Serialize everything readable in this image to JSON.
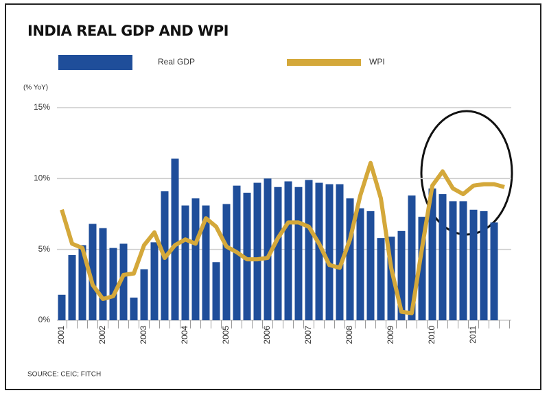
{
  "chart_data": {
    "type": "bar_line",
    "title": "INDIA REAL GDP AND WPI",
    "y_label": "(% YoY)",
    "source": "SOURCE: CEIC; FITCH",
    "categories": [
      "2001",
      null,
      null,
      null,
      "2002",
      null,
      null,
      null,
      "2003",
      null,
      null,
      null,
      "2004",
      null,
      null,
      null,
      "2005",
      null,
      null,
      null,
      "2006",
      null,
      null,
      null,
      "2007",
      null,
      null,
      null,
      "2008",
      null,
      null,
      null,
      "2009",
      null,
      null,
      null,
      "2010",
      null,
      null,
      null,
      "2011",
      null,
      null,
      null
    ],
    "series": [
      {
        "name": "Real GDP",
        "type": "bar",
        "color": "#1f4e9a",
        "values": [
          1.8,
          4.6,
          5.3,
          6.8,
          6.5,
          5.1,
          5.4,
          1.6,
          3.6,
          5.5,
          9.1,
          11.4,
          8.1,
          8.6,
          8.1,
          4.1,
          8.2,
          9.5,
          9.0,
          9.7,
          10.0,
          9.4,
          9.8,
          9.4,
          9.9,
          9.7,
          9.6,
          9.6,
          8.6,
          7.9,
          7.7,
          5.8,
          5.9,
          6.3,
          8.8,
          7.3,
          9.3,
          8.9,
          8.4,
          8.4,
          7.8,
          7.7,
          6.9,
          null
        ]
      },
      {
        "name": "WPI",
        "type": "line",
        "color": "#d4a83a",
        "values": [
          7.8,
          5.4,
          5.1,
          2.5,
          1.5,
          1.7,
          3.2,
          3.3,
          5.3,
          6.2,
          4.4,
          5.3,
          5.7,
          5.4,
          7.2,
          6.6,
          5.2,
          4.8,
          4.3,
          4.3,
          4.4,
          5.8,
          6.9,
          6.9,
          6.6,
          5.4,
          3.9,
          3.7,
          5.7,
          8.8,
          11.1,
          8.6,
          3.7,
          0.6,
          0.5,
          5.1,
          9.5,
          10.5,
          9.3,
          8.9,
          9.5,
          9.6,
          9.6,
          9.4
        ]
      }
    ],
    "ylim": [
      0,
      15
    ],
    "yticks": [
      {
        "value": 0,
        "label": "0%"
      },
      {
        "value": 5,
        "label": "5%"
      },
      {
        "value": 10,
        "label": "10%"
      },
      {
        "value": 15,
        "label": "15%"
      }
    ],
    "grid": true
  }
}
